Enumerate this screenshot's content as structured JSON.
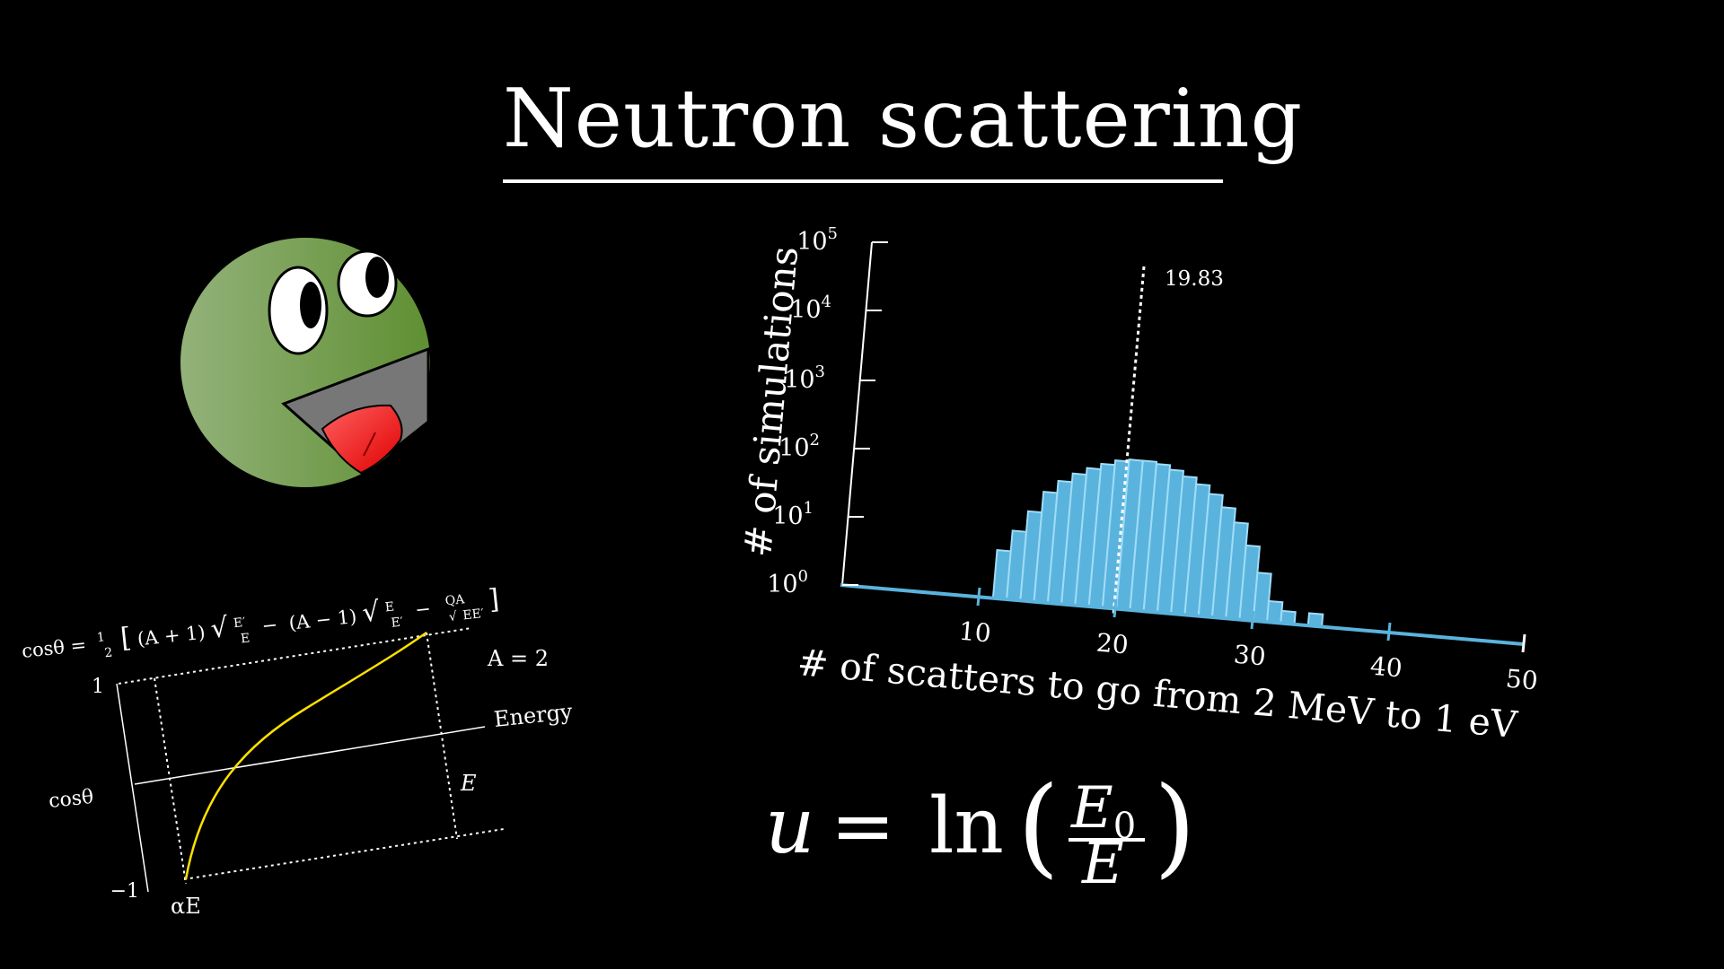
{
  "title": "Neutron scattering",
  "colors": {
    "background": "#000000",
    "bar_fill": "#5ab3dd",
    "bar_stroke": "#9fdcf7",
    "curve": "#ffe000",
    "creature_green": "#6e9a46",
    "creature_tongue": "#ff3c3c",
    "creature_mouth": "#777777"
  },
  "mascot": {
    "icon": "neutron-creature-icon"
  },
  "histogram": {
    "ylabel": "# of simulations",
    "xlabel": "# of scatters to go from 2 MeV to 1 eV",
    "mean_label": "19.83",
    "y_ticks": [
      {
        "base": "10",
        "exp": "0"
      },
      {
        "base": "10",
        "exp": "1"
      },
      {
        "base": "10",
        "exp": "2"
      },
      {
        "base": "10",
        "exp": "3"
      },
      {
        "base": "10",
        "exp": "4"
      },
      {
        "base": "10",
        "exp": "5"
      }
    ],
    "x_ticks": [
      "10",
      "20",
      "30",
      "40",
      "50"
    ]
  },
  "chart_data": {
    "type": "bar",
    "xlabel": "# of scatters to go from 2 MeV to 1 eV",
    "ylabel": "# of simulations",
    "yscale": "log",
    "xlim": [
      0,
      50
    ],
    "ylim": [
      1,
      100000
    ],
    "mean": 19.83,
    "bins": [
      11,
      12,
      13,
      14,
      15,
      16,
      17,
      18,
      19,
      20,
      21,
      22,
      23,
      24,
      25,
      26,
      27,
      28,
      29,
      30,
      31,
      32,
      33,
      34
    ],
    "values": [
      5,
      10,
      20,
      40,
      60,
      80,
      100,
      120,
      140,
      150,
      150,
      140,
      120,
      100,
      80,
      60,
      40,
      25,
      12,
      5,
      2,
      1.5,
      1,
      1.5
    ]
  },
  "formula": {
    "lhs": "cosθ =",
    "half_num": "1",
    "half_den": "2",
    "t1": "(A + 1)",
    "f1_num": "E′",
    "f1_den": "E",
    "minus1": "−",
    "t2": "(A − 1)",
    "f2_num": "E",
    "f2_den": "E′",
    "minus2": "−",
    "f3_num": "QA",
    "f3_den": "EE′"
  },
  "small_plot": {
    "ylabel": "cosθ",
    "y_top": "1",
    "y_bottom": "−1",
    "x_left": "αE",
    "x_right": "E",
    "axis_label": "Energy",
    "param": "A = 2"
  },
  "equation": {
    "lhs": "u",
    "eq": "=",
    "fn": "ln",
    "num_base": "E",
    "num_sub": "0",
    "den": "E"
  }
}
